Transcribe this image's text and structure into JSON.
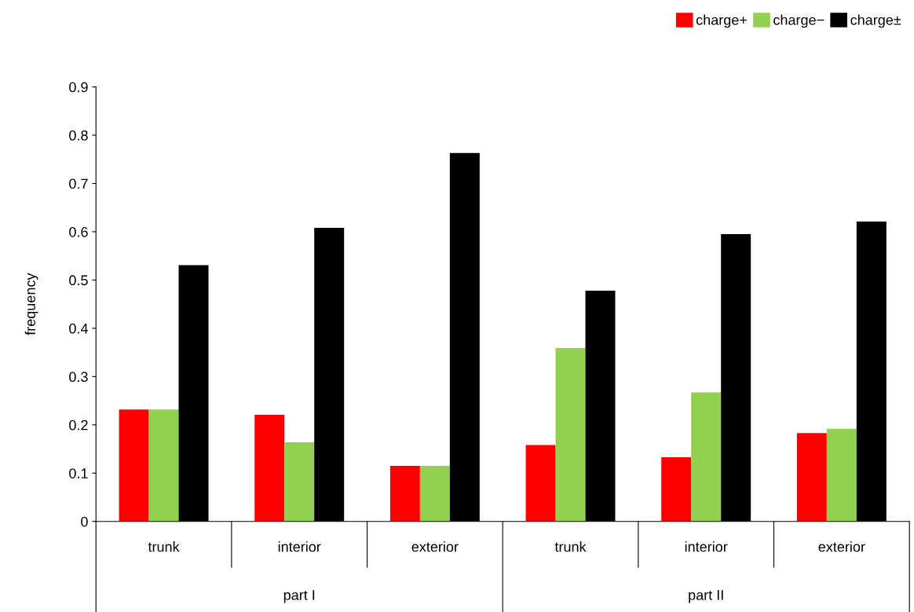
{
  "chart_data": {
    "type": "bar",
    "ylabel": "frequency",
    "categories": [
      "trunk",
      "interior",
      "exterior",
      "trunk",
      "interior",
      "exterior"
    ],
    "series": [
      {
        "name": "charge+",
        "color": "#ff0000",
        "values": [
          0.232,
          0.221,
          0.115,
          0.158,
          0.133,
          0.183
        ]
      },
      {
        "name": "charge−",
        "color": "#92d050",
        "values": [
          0.232,
          0.164,
          0.115,
          0.359,
          0.267,
          0.192
        ]
      },
      {
        "name": "charge±",
        "color": "#000000",
        "values": [
          0.531,
          0.608,
          0.763,
          0.478,
          0.595,
          0.621
        ]
      }
    ],
    "ylim": [
      0,
      0.9
    ],
    "yticks": [
      0,
      0.1,
      0.2,
      0.3,
      0.4,
      0.5,
      0.6,
      0.7,
      0.8,
      0.9
    ],
    "grid": false,
    "legend": "top right",
    "annotations": [
      "part I",
      "part II"
    ]
  }
}
